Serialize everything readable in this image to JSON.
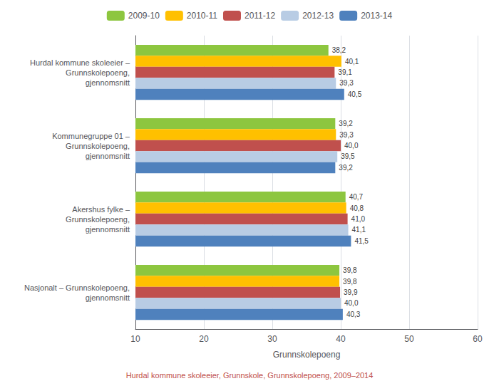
{
  "chart_data": {
    "type": "bar",
    "orientation": "horizontal",
    "categories": [
      "Hurdal kommune skoleeier –\nGrunnskolepoeng,\ngjennomsnitt",
      "Kommunegruppe 01 –\nGrunnskolepoeng,\ngjennomsnitt",
      "Akershus fylke –\nGrunnskolepoeng,\ngjennomsnitt",
      "Nasjonalt – Grunnskolepoeng,\ngjennomsnitt"
    ],
    "series": [
      {
        "name": "2009-10",
        "color": "#8dc63f",
        "values": [
          38.2,
          39.2,
          40.7,
          39.8
        ],
        "value_labels": [
          "38,2",
          "39,2",
          "40,7",
          "39,8"
        ]
      },
      {
        "name": "2010-11",
        "color": "#ffc000",
        "values": [
          40.1,
          39.3,
          40.8,
          39.8
        ],
        "value_labels": [
          "40,1",
          "39,3",
          "40,8",
          "39,8"
        ]
      },
      {
        "name": "2011-12",
        "color": "#c0504d",
        "values": [
          39.1,
          40.0,
          41.0,
          39.9
        ],
        "value_labels": [
          "39,1",
          "40,0",
          "41,0",
          "39,9"
        ]
      },
      {
        "name": "2012-13",
        "color": "#b8cce4",
        "values": [
          39.3,
          39.5,
          41.1,
          40.0
        ],
        "value_labels": [
          "39,3",
          "39,5",
          "41,1",
          "40,0"
        ]
      },
      {
        "name": "2013-14",
        "color": "#4f81bd",
        "values": [
          40.5,
          39.2,
          41.5,
          40.3
        ],
        "value_labels": [
          "40,5",
          "39,2",
          "41,5",
          "40,3"
        ]
      }
    ],
    "xlabel": "Grunnskolepoeng",
    "xlim": [
      10,
      60
    ],
    "xticks": [
      10,
      20,
      30,
      40,
      50,
      60
    ],
    "footer": "Hurdal kommune skoleeier, Grunnskole, Grunnskolepoeng, 2009–2014",
    "grid": true,
    "legend": "top",
    "data_labels": true
  }
}
